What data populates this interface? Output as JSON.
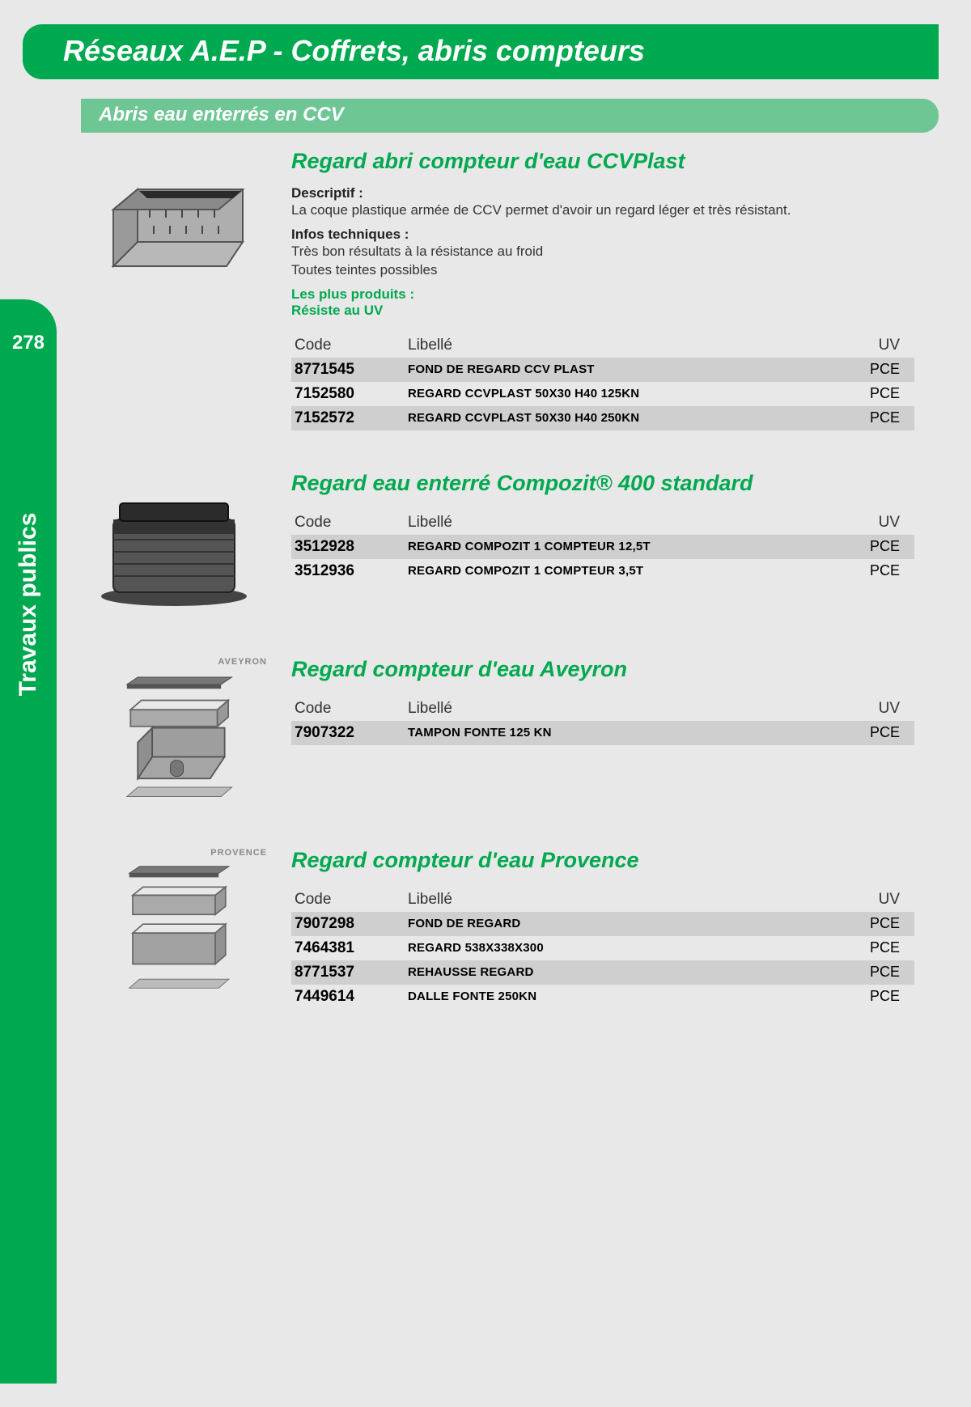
{
  "colors": {
    "primary": "#00a94f",
    "primary_light": "#6fc695",
    "page_bg": "#e8e8e8",
    "outer_bg": "#d7d7d7",
    "row_shade": "#cfcfcf",
    "text": "#333333"
  },
  "header": {
    "title": "Réseaux A.E.P - Coffrets, abris compteurs"
  },
  "subheader": {
    "title": "Abris eau enterrés en CCV"
  },
  "sidebar": {
    "page_number": "278",
    "section_label": "Travaux publics"
  },
  "table_headers": {
    "code": "Code",
    "libelle": "Libellé",
    "uv": "UV"
  },
  "labels": {
    "descriptif": "Descriptif :",
    "infos": "Infos techniques :",
    "plus": "Les plus produits :"
  },
  "products": [
    {
      "title": "Regard abri compteur d'eau CCVPlast",
      "descriptif": "La coque plastique armée de CCV permet d'avoir un regard léger et très résistant.",
      "infos": "Très bon résultats à la résistance au froid\nToutes teintes possibles",
      "plus": "Résiste au UV",
      "rows": [
        {
          "code": "8771545",
          "libelle": "FOND DE REGARD CCV PLAST",
          "uv": "PCE",
          "shade": true
        },
        {
          "code": "7152580",
          "libelle": "REGARD CCVPLAST 50X30 H40 125KN",
          "uv": "PCE",
          "shade": false
        },
        {
          "code": "7152572",
          "libelle": "REGARD CCVPLAST 50X30 H40 250KN",
          "uv": "PCE",
          "shade": true
        }
      ]
    },
    {
      "title": "Regard eau enterré Compozit® 400 standard",
      "rows": [
        {
          "code": "3512928",
          "libelle": "REGARD COMPOZIT 1 COMPTEUR 12,5T",
          "uv": "PCE",
          "shade": true
        },
        {
          "code": "3512936",
          "libelle": "REGARD COMPOZIT 1 COMPTEUR 3,5T",
          "uv": "PCE",
          "shade": false
        }
      ]
    },
    {
      "title": "Regard compteur d'eau Aveyron",
      "badge": "AVEYRON",
      "rows": [
        {
          "code": "7907322",
          "libelle": "TAMPON FONTE 125 KN",
          "uv": "PCE",
          "shade": true
        }
      ]
    },
    {
      "title": "Regard compteur d'eau Provence",
      "badge": "PROVENCE",
      "rows": [
        {
          "code": "7907298",
          "libelle": "FOND DE REGARD",
          "uv": "PCE",
          "shade": true
        },
        {
          "code": "7464381",
          "libelle": "REGARD 538X338X300",
          "uv": "PCE",
          "shade": false
        },
        {
          "code": "8771537",
          "libelle": "REHAUSSE REGARD",
          "uv": "PCE",
          "shade": true
        },
        {
          "code": "7449614",
          "libelle": "DALLE FONTE 250KN",
          "uv": "PCE",
          "shade": false
        }
      ]
    }
  ]
}
